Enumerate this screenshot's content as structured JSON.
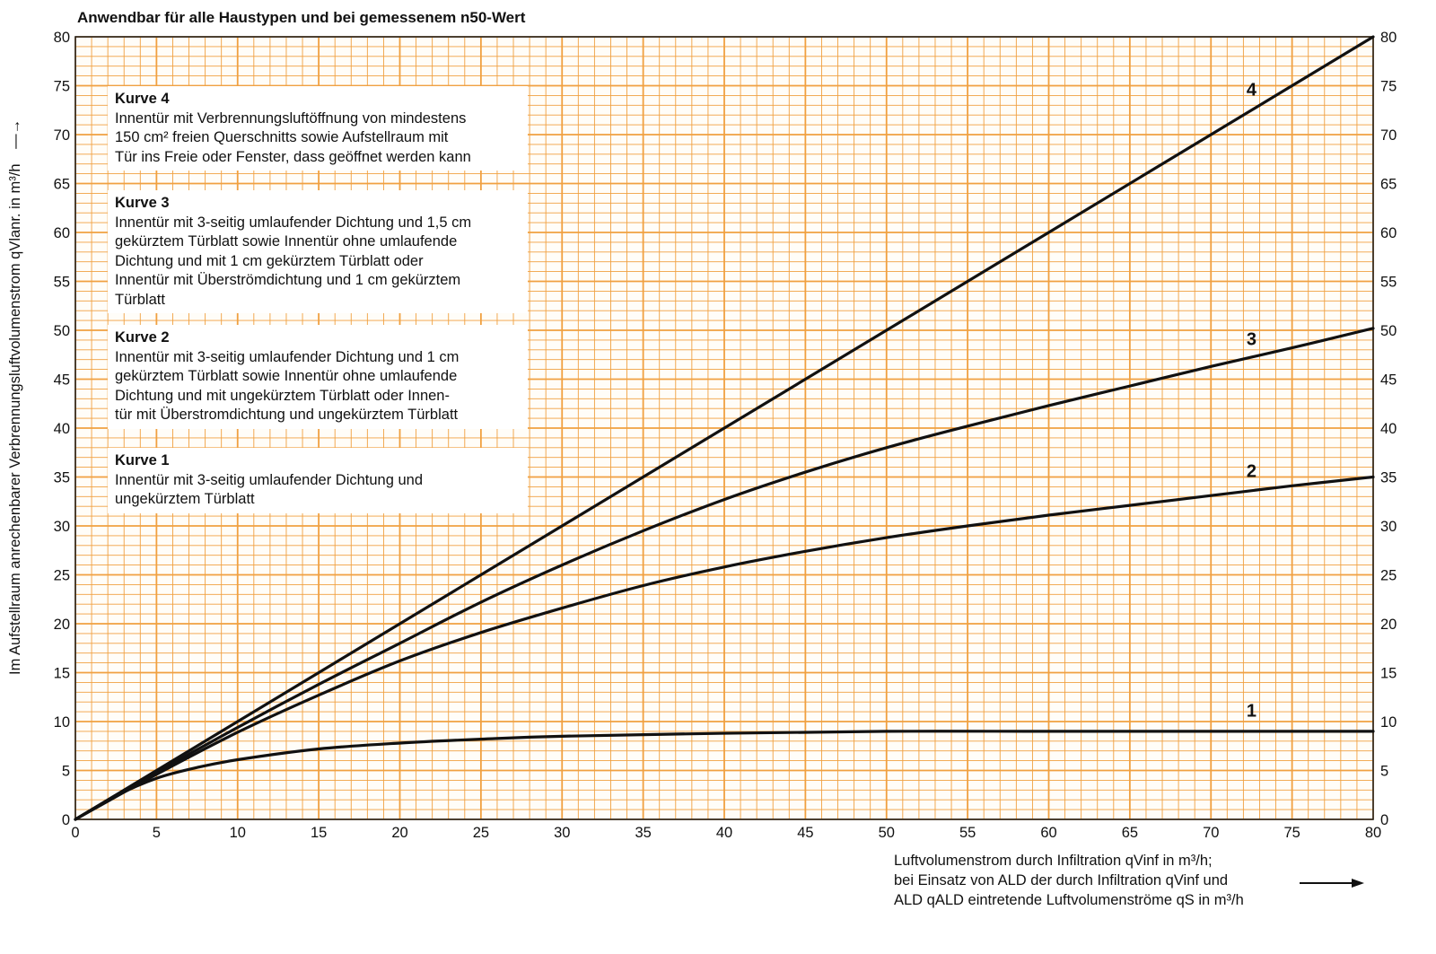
{
  "title": "Anwendbar für alle Haustypen und bei gemessenem n50-Wert",
  "chart_data": {
    "type": "line",
    "title": "Anwendbar für alle Haustypen und bei gemessenem n50-Wert",
    "xlabel": "Luftvolumenstrom durch Infiltration qVinf in m³/h; bei Einsatz von ALD der durch Infiltration qVinf und ALD qALD eintretende Luftvolumenströme qS in m³/h",
    "ylabel": "Im Aufstellraum anrechenbarer Verbrennungsluftvolumenstrom qVlanr. in m³/h",
    "xlim": [
      0,
      80
    ],
    "ylim": [
      0,
      80
    ],
    "x_ticks": [
      0,
      5,
      10,
      15,
      20,
      25,
      30,
      35,
      40,
      45,
      50,
      55,
      60,
      65,
      70,
      75,
      80
    ],
    "y_ticks": [
      0,
      5,
      10,
      15,
      20,
      25,
      30,
      35,
      40,
      45,
      50,
      55,
      60,
      65,
      70,
      75,
      80
    ],
    "grid": true,
    "grid_color": "#f0a040",
    "series": [
      {
        "name": "4",
        "x": [
          0,
          10,
          20,
          30,
          40,
          50,
          60,
          70,
          80
        ],
        "y": [
          0,
          10,
          20,
          30,
          40,
          50,
          60,
          70,
          80
        ]
      },
      {
        "name": "3",
        "x": [
          0,
          5,
          10,
          15,
          20,
          25,
          30,
          35,
          40,
          45,
          50,
          55,
          60,
          65,
          70,
          75,
          80
        ],
        "y": [
          0,
          4.8,
          9.4,
          13.8,
          18,
          22.2,
          26,
          29.5,
          32.7,
          35.5,
          38,
          40.2,
          42.3,
          44.3,
          46.3,
          48.2,
          50.2
        ]
      },
      {
        "name": "2",
        "x": [
          0,
          5,
          10,
          15,
          20,
          25,
          30,
          35,
          40,
          45,
          50,
          55,
          60,
          65,
          70,
          75,
          80
        ],
        "y": [
          0,
          4.6,
          8.9,
          12.7,
          16.2,
          19.1,
          21.6,
          23.9,
          25.8,
          27.4,
          28.8,
          30,
          31.1,
          32.1,
          33.1,
          34.1,
          35
        ]
      },
      {
        "name": "1",
        "x": [
          0,
          2.5,
          5,
          7.5,
          10,
          15,
          20,
          25,
          30,
          40,
          50,
          60,
          70,
          80
        ],
        "y": [
          0,
          2.4,
          4.2,
          5.3,
          6.1,
          7.2,
          7.8,
          8.2,
          8.5,
          8.8,
          9,
          9,
          9,
          9
        ]
      }
    ],
    "curve_labels": [
      {
        "text": "4",
        "x": 72.5,
        "y": 74
      },
      {
        "text": "3",
        "x": 72.5,
        "y": 48.5
      },
      {
        "text": "2",
        "x": 72.5,
        "y": 35
      },
      {
        "text": "1",
        "x": 72.5,
        "y": 10.5
      }
    ]
  },
  "legend": [
    {
      "title": "Kurve 4",
      "text": "Innentür mit Verbrennungsluftöffnung von mindestens\n150 cm² freien Querschnitts sowie Aufstellraum mit\nTür ins Freie oder Fenster, dass geöffnet werden kann"
    },
    {
      "title": "Kurve 3",
      "text": "Innentür mit 3-seitig umlaufender Dichtung und 1,5 cm\ngekürztem Türblatt sowie Innentür ohne umlaufende\nDichtung und mit 1 cm gekürztem Türblatt oder\nInnentür mit Überströmdichtung und 1 cm gekürztem\nTürblatt"
    },
    {
      "title": "Kurve 2",
      "text": "Innentür mit 3-seitig umlaufender Dichtung und 1 cm\ngekürztem Türblatt sowie Innentür ohne umlaufende\nDichtung und mit ungekürztem Türblatt oder Innen-\ntür mit Überstromdichtung und ungekürztem Türblatt"
    },
    {
      "title": "Kurve 1",
      "text": "Innentür mit 3-seitig umlaufender Dichtung und\nungekürztem Türblatt"
    }
  ],
  "xlabel_lines": [
    "Luftvolumenstrom durch Infiltration qVinf in m³/h;",
    "bei Einsatz von ALD der durch Infiltration qVinf und",
    "ALD qALD eintretende Luftvolumenströme qS in m³/h"
  ]
}
